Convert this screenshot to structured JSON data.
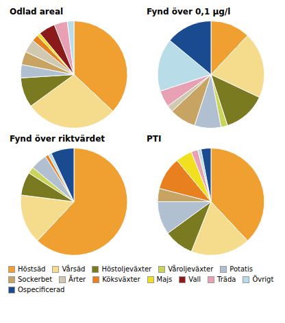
{
  "chart_data": [
    {
      "type": "pie",
      "title": "Odlad areal",
      "categories": [
        "Höstsäd",
        "Vårsäd",
        "Höstoljeväxter",
        "Potatis",
        "Sockerbet",
        "Ärter",
        "Köksväxter",
        "Majs",
        "Vall",
        "Träda",
        "Övrigt"
      ],
      "values": [
        37,
        28,
        9,
        4,
        4,
        4,
        2,
        1,
        5,
        4,
        2
      ],
      "colors": [
        "#F0A030",
        "#F5DC8C",
        "#7A7A20",
        "#B0C0D0",
        "#C8A464",
        "#D0C8B0",
        "#E88020",
        "#F0E020",
        "#8B1A1A",
        "#E8A0B4",
        "#B8DCE8"
      ],
      "legend": "bottom"
    },
    {
      "type": "pie",
      "title": "Fynd över 0,1 µg/l",
      "categories": [
        "Höstsäd",
        "Vårsäd",
        "Höstoljeväxter",
        "Våroljeväxter",
        "Potatis",
        "Sockerbet",
        "Ärter",
        "Träda",
        "Övrigt",
        "Ospecificerad"
      ],
      "values": [
        12,
        20,
        13,
        2,
        8,
        8,
        2,
        5,
        16,
        14
      ],
      "colors": [
        "#F0A030",
        "#F5DC8C",
        "#7A7A20",
        "#C8D45A",
        "#B0C0D0",
        "#C8A464",
        "#D0C8B0",
        "#E8A0B4",
        "#B8DCE8",
        "#1A4A90"
      ],
      "legend": "bottom"
    },
    {
      "type": "pie",
      "title": "Fynd över riktvärdet",
      "categories": [
        "Höstsäd",
        "Vårsäd",
        "Höstoljeväxter",
        "Våroljeväxter",
        "Potatis",
        "Köksväxter",
        "Övrigt",
        "Ospecificerad"
      ],
      "values": [
        62,
        15,
        7,
        2,
        5,
        1,
        1,
        7
      ],
      "colors": [
        "#F0A030",
        "#F5DC8C",
        "#7A7A20",
        "#C8D45A",
        "#B0C0D0",
        "#E88020",
        "#B8DCE8",
        "#1A4A90"
      ],
      "legend": "bottom"
    },
    {
      "type": "pie",
      "title": "PTI",
      "categories": [
        "Höstsäd",
        "Vårsäd",
        "Höstoljeväxter",
        "Potatis",
        "Sockerbet",
        "Köksväxter",
        "Majs",
        "Träda",
        "Övrigt",
        "Ospecificerad"
      ],
      "values": [
        38,
        18,
        9,
        10,
        4,
        10,
        5,
        2,
        1,
        3
      ],
      "colors": [
        "#F0A030",
        "#F5DC8C",
        "#7A7A20",
        "#B0C0D0",
        "#C8A464",
        "#E88020",
        "#F0E020",
        "#E8A0B4",
        "#B8DCE8",
        "#1A4A90"
      ],
      "legend": "bottom"
    }
  ],
  "legend_order": [
    "Höstsäd",
    "Vårsäd",
    "Höstoljeväxter",
    "Våroljeväxter",
    "Potatis",
    "Sockerbet",
    "Ärter",
    "Köksväxter",
    "Majs",
    "Vall",
    "Träda",
    "Övrigt",
    "Ospecificerad"
  ]
}
